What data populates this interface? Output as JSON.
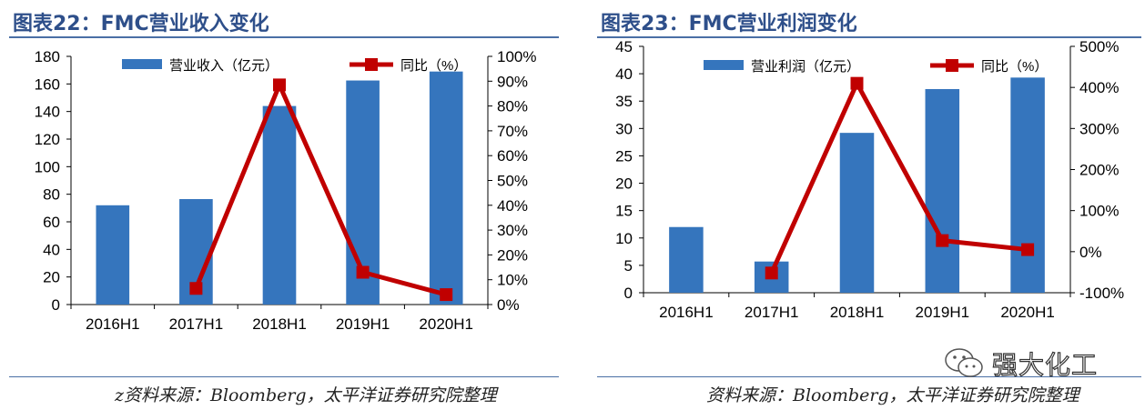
{
  "colors": {
    "bar": "#3575bd",
    "line": "#c00000",
    "title": "#2e4f8a",
    "rule": "#4a6fa5"
  },
  "watermark": {
    "text": "强大化工",
    "icon": "wechat-icon"
  },
  "charts": {
    "left": {
      "title": "图表22：FMC营业收入变化",
      "source": "z资料来源：Bloomberg，太平洋证券研究院整理"
    },
    "right": {
      "title": "图表23：FMC营业利润变化",
      "source": "资料来源：Bloomberg，太平洋证券研究院整理"
    }
  },
  "chart_data": [
    {
      "type": "bar",
      "title": "图表22：FMC营业收入变化",
      "categories": [
        "2016H1",
        "2017H1",
        "2018H1",
        "2019H1",
        "2020H1"
      ],
      "series": [
        {
          "name": "营业收入（亿元）",
          "type": "bar",
          "axis": "left",
          "values": [
            72,
            76.5,
            144,
            162.5,
            169
          ]
        },
        {
          "name": "同比（%）",
          "type": "line",
          "axis": "right",
          "values": [
            null,
            6.5,
            88.5,
            13,
            4
          ]
        }
      ],
      "y_left": {
        "min": 0,
        "max": 180,
        "step": 20,
        "ticks": [
          "0",
          "20",
          "40",
          "60",
          "80",
          "100",
          "120",
          "140",
          "160",
          "180"
        ]
      },
      "y_right": {
        "min": 0,
        "max": 100,
        "step": 10,
        "ticks": [
          "0%",
          "10%",
          "20%",
          "30%",
          "40%",
          "50%",
          "60%",
          "70%",
          "80%",
          "90%",
          "100%"
        ]
      },
      "legend": "top",
      "grid": false
    },
    {
      "type": "bar",
      "title": "图表23：FMC营业利润变化",
      "categories": [
        "2016H1",
        "2017H1",
        "2018H1",
        "2019H1",
        "2020H1"
      ],
      "series": [
        {
          "name": "营业利润（亿元）",
          "type": "bar",
          "axis": "left",
          "values": [
            12,
            5.7,
            29.2,
            37.2,
            39.3
          ]
        },
        {
          "name": "同比（%）",
          "type": "line",
          "axis": "right",
          "values": [
            null,
            -52,
            410,
            27,
            5
          ]
        }
      ],
      "y_left": {
        "min": 0,
        "max": 45,
        "step": 5,
        "ticks": [
          "0",
          "5",
          "10",
          "15",
          "20",
          "25",
          "30",
          "35",
          "40",
          "45"
        ]
      },
      "y_right": {
        "min": -100,
        "max": 500,
        "step": 100,
        "ticks": [
          "-100%",
          "0%",
          "100%",
          "200%",
          "300%",
          "400%",
          "500%"
        ]
      },
      "legend": "top",
      "grid": false
    }
  ]
}
